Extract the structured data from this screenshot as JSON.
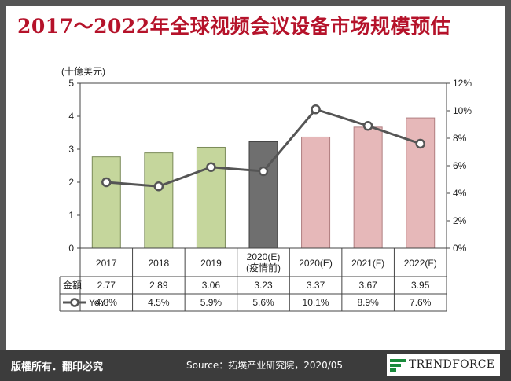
{
  "title": "2017～2022年全球视频会议设备市场规模预估",
  "footer": {
    "copyright": "版權所有．翻印必究",
    "source": "Source：拓墣产业研究院，2020/05",
    "logo_text": "TRENDFORCE"
  },
  "colors": {
    "title_red": "#b5122a",
    "bar_green": "#c5d69c",
    "bar_gray": "#6f6f6f",
    "bar_pink": "#e6b8b9",
    "line": "#555555"
  },
  "chart_data": {
    "type": "bar",
    "combo_line": true,
    "categories": [
      "2017",
      "2018",
      "2019",
      "2020(E)\n(疫情前)",
      "2020(E)",
      "2021(F)",
      "2022(F)"
    ],
    "bar_colors": [
      "green",
      "green",
      "green",
      "gray",
      "pink",
      "pink",
      "pink"
    ],
    "series": [
      {
        "name": "金額",
        "values": [
          2.77,
          2.89,
          3.06,
          3.23,
          3.37,
          3.67,
          3.95
        ],
        "labels": [
          "2.77",
          "2.89",
          "3.06",
          "3.23",
          "3.37",
          "3.67",
          "3.95"
        ],
        "axis": "left"
      },
      {
        "name": "YoY",
        "values": [
          4.8,
          4.5,
          5.9,
          5.6,
          10.1,
          8.9,
          7.6
        ],
        "labels": [
          "4.8%",
          "4.5%",
          "5.9%",
          "5.6%",
          "10.1%",
          "8.9%",
          "7.6%"
        ],
        "axis": "right",
        "type": "line"
      }
    ],
    "ylabel": "(十億美元)",
    "ylim": [
      0,
      5
    ],
    "yticks": [
      "0",
      "1",
      "2",
      "3",
      "4",
      "5"
    ],
    "y2lim": [
      0,
      12
    ],
    "y2ticks": [
      "0%",
      "2%",
      "4%",
      "6%",
      "8%",
      "10%",
      "12%"
    ],
    "grid": false,
    "data_table": true
  }
}
